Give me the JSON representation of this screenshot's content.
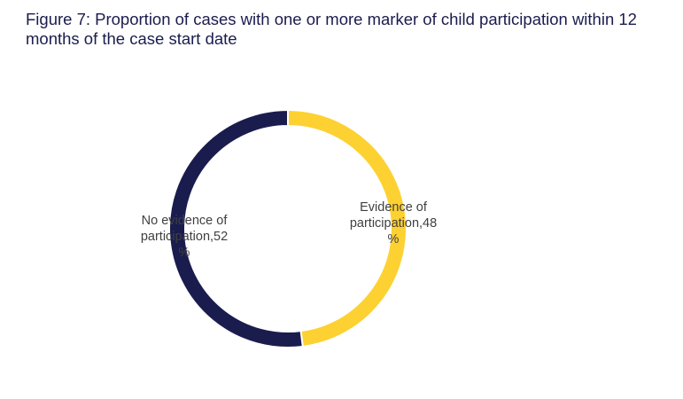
{
  "title": "Figure 7: Proportion of cases with one or more marker of child participation within 12 months of the case start date",
  "chart_data": {
    "type": "pie",
    "donut": true,
    "title": "Figure 7: Proportion of cases with one or more marker of child participation within 12 months of the case start date",
    "slices": [
      {
        "name": "Evidence of participation",
        "value": 48,
        "unit": "%",
        "color": "#fdd131",
        "label_lines": [
          "Evidence of",
          "participation,48",
          "%"
        ]
      },
      {
        "name": "No evidence of participation",
        "value": 52,
        "unit": "%",
        "color": "#1a1c4e",
        "label_lines": [
          "No evidence of",
          "participation,52",
          "%"
        ]
      }
    ],
    "legend": "none"
  }
}
